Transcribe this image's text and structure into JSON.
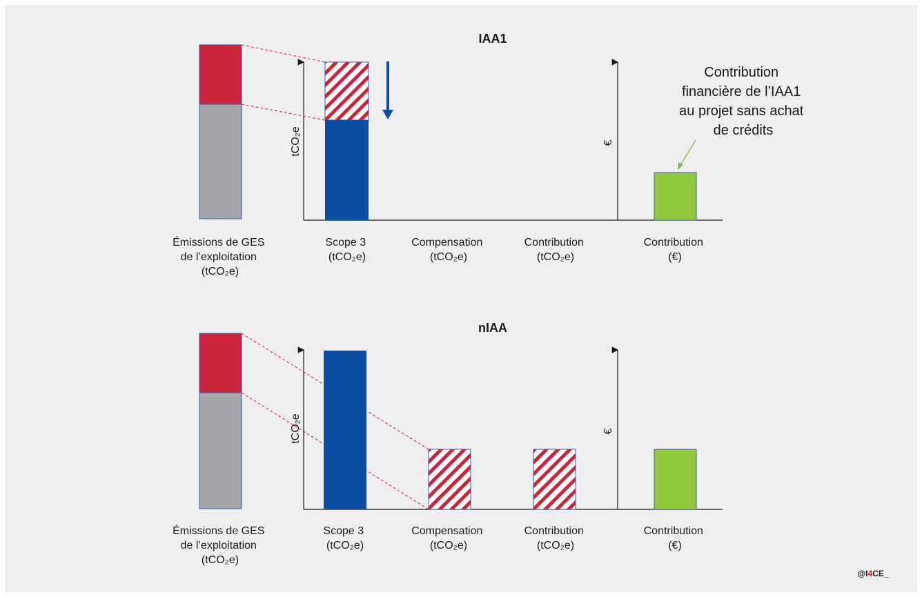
{
  "colors": {
    "background": "#efeff0",
    "red": "#c8253a",
    "gray": "#a7a7ab",
    "blue": "#0b4da2",
    "green": "#95c93d",
    "hatch_red": "#c8253a",
    "dashed": "#c8253a",
    "arrow_green": "#7dbb42",
    "axis": "#1a1a1a"
  },
  "panels": [
    {
      "title": "IAA1",
      "emissions_label": [
        "Émissions de GES",
        "de l’exploitation",
        "(tCO₂e)"
      ],
      "y_axis_label": "tCO₂e",
      "euro_axis_label": "€",
      "categories": [
        {
          "name": "Scope 3",
          "unit": "(tCO₂e)"
        },
        {
          "name": "Compensation",
          "unit": "(tCO₂e)"
        },
        {
          "name": "Contribution",
          "unit": "(tCO₂e)"
        },
        {
          "name": "Contribution",
          "unit": "(€)"
        }
      ],
      "emissions_bar": {
        "gray_share": 0.67,
        "red_share": 0.33
      },
      "scope3": {
        "solid": 0.63,
        "hatched": 0.37
      },
      "compensation": 0,
      "contribution_t": 0,
      "contribution_eur": 0.31,
      "reduction_arrow": true,
      "annotation": [
        "Contribution",
        "financière de l’IAA1",
        "au projet sans achat",
        "de crédits"
      ],
      "annotation_arrow": "arrow-to-contribution-euro"
    },
    {
      "title": "nIAA",
      "emissions_label": [
        "Émissions de GES",
        "de l’exploitation",
        "(tCO₂e)"
      ],
      "y_axis_label": "tCO₂e",
      "euro_axis_label": "€",
      "categories": [
        {
          "name": "Scope 3",
          "unit": "(tCO₂e)"
        },
        {
          "name": "Compensation",
          "unit": "(tCO₂e)"
        },
        {
          "name": "Contribution",
          "unit": "(tCO₂e)"
        },
        {
          "name": "Contribution",
          "unit": "(€)"
        }
      ],
      "emissions_bar": {
        "gray_share": 0.67,
        "red_share": 0.33
      },
      "scope3": {
        "solid": 1.0,
        "hatched": 0
      },
      "compensation": 0.39,
      "contribution_t": 0.39,
      "contribution_eur": 0.39,
      "reduction_arrow": false,
      "annotation": [],
      "annotation_arrow": ""
    }
  ],
  "credit": {
    "prefix": "@I",
    "accent": "4",
    "suffix": "CE_"
  }
}
